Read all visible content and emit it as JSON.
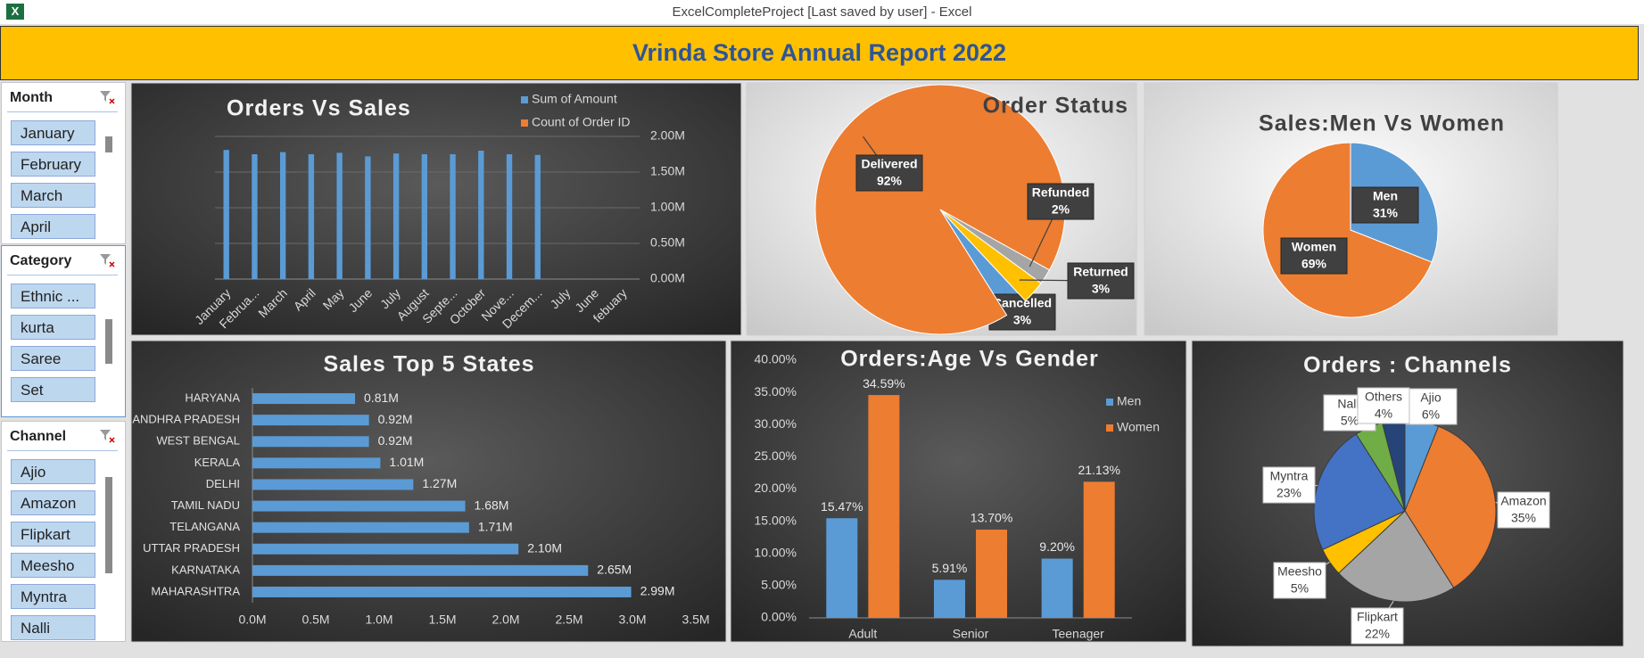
{
  "window_title": "ExcelCompleteProject [Last saved by user] - Excel",
  "header": {
    "title": "Vrinda Store Annual Report 2022"
  },
  "slicers": [
    {
      "title": "Month",
      "items": [
        "January",
        "February",
        "March",
        "April"
      ]
    },
    {
      "title": "Category",
      "items": [
        "Ethnic ...",
        "kurta",
        "Saree",
        "Set"
      ]
    },
    {
      "title": "Channel",
      "items": [
        "Ajio",
        "Amazon",
        "Flipkart",
        "Meesho",
        "Myntra",
        "Nalli"
      ]
    }
  ],
  "chart_data": [
    {
      "type": "bar",
      "title": "Orders Vs Sales",
      "categories": [
        "January",
        "Februa...",
        "March",
        "April",
        "May",
        "June",
        "July",
        "August",
        "Septe...",
        "October",
        "Nove...",
        "Decem...",
        "July",
        "June",
        "febuary"
      ],
      "series": [
        {
          "name": "Sum of Amount",
          "color": "#5B9BD5",
          "values": [
            1.81,
            1.75,
            1.78,
            1.75,
            1.77,
            1.72,
            1.76,
            1.75,
            1.75,
            1.8,
            1.75,
            1.74,
            0,
            0,
            0
          ]
        },
        {
          "name": "Count of Order ID",
          "color": "#ED7D31",
          "values": [
            0,
            0,
            0,
            0,
            0,
            0,
            0,
            0,
            0,
            0,
            0,
            0,
            0,
            0,
            0
          ]
        }
      ],
      "ylim": [
        0,
        2
      ],
      "yticks": [
        {
          "value": 0,
          "label": "0.00M"
        },
        {
          "value": 0.5,
          "label": "0.50M"
        },
        {
          "value": 1,
          "label": "1.00M"
        },
        {
          "value": 1.5,
          "label": "1.50M"
        },
        {
          "value": 2,
          "label": "2.00M"
        }
      ],
      "grid": true,
      "legend": "top-right"
    },
    {
      "type": "pie",
      "title": "Order Status",
      "categories": [
        "Cancelled",
        "Delivered",
        "Refunded",
        "Returned"
      ],
      "values": [
        3,
        92,
        2,
        3
      ],
      "value_labels": [
        "3%",
        "92%",
        "2%",
        "3%"
      ],
      "colors": [
        "#5B9BD5",
        "#ED7D31",
        "#A5A5A5",
        "#FFC000"
      ]
    },
    {
      "type": "pie",
      "title": "Sales:Men Vs Women",
      "categories": [
        "Men",
        "Women"
      ],
      "values": [
        31,
        69
      ],
      "value_labels": [
        "31%",
        "69%"
      ],
      "colors": [
        "#5B9BD5",
        "#ED7D31"
      ]
    },
    {
      "type": "barh",
      "title": "Sales Top 5 States",
      "categories": [
        "HARYANA",
        "ANDHRA PRADESH",
        "WEST BENGAL",
        "KERALA",
        "DELHI",
        "TAMIL NADU",
        "TELANGANA",
        "UTTAR PRADESH",
        "KARNATAKA",
        "MAHARASHTRA"
      ],
      "values": [
        0.81,
        0.92,
        0.92,
        1.01,
        1.27,
        1.68,
        1.71,
        2.1,
        2.65,
        2.99
      ],
      "value_labels": [
        "0.81M",
        "0.92M",
        "0.92M",
        "1.01M",
        "1.27M",
        "1.68M",
        "1.71M",
        "2.10M",
        "2.65M",
        "2.99M"
      ],
      "color": "#5B9BD5",
      "xlim": [
        0,
        3.5
      ],
      "xticks": [
        {
          "value": 0,
          "label": "0.0M"
        },
        {
          "value": 0.5,
          "label": "0.5M"
        },
        {
          "value": 1,
          "label": "1.0M"
        },
        {
          "value": 1.5,
          "label": "1.5M"
        },
        {
          "value": 2,
          "label": "2.0M"
        },
        {
          "value": 2.5,
          "label": "2.5M"
        },
        {
          "value": 3,
          "label": "3.0M"
        },
        {
          "value": 3.5,
          "label": "3.5M"
        }
      ],
      "grid": false
    },
    {
      "type": "bar",
      "title": "Orders:Age Vs Gender",
      "categories": [
        "Adult",
        "Senior",
        "Teenager"
      ],
      "series": [
        {
          "name": "Men",
          "color": "#5B9BD5",
          "values": [
            15.47,
            5.91,
            9.2
          ],
          "value_labels": [
            "15.47%",
            "5.91%",
            "9.20%"
          ]
        },
        {
          "name": "Women",
          "color": "#ED7D31",
          "values": [
            34.59,
            13.7,
            21.13
          ],
          "value_labels": [
            "34.59%",
            "13.70%",
            "21.13%"
          ]
        }
      ],
      "ylim": [
        0,
        40
      ],
      "yticks": [
        {
          "value": 0,
          "label": "0.00%"
        },
        {
          "value": 5,
          "label": "5.00%"
        },
        {
          "value": 10,
          "label": "10.00%"
        },
        {
          "value": 15,
          "label": "15.00%"
        },
        {
          "value": 20,
          "label": "20.00%"
        },
        {
          "value": 25,
          "label": "25.00%"
        },
        {
          "value": 30,
          "label": "30.00%"
        },
        {
          "value": 35,
          "label": "35.00%"
        },
        {
          "value": 40,
          "label": "40.00%"
        }
      ],
      "grid": false,
      "legend": "right"
    },
    {
      "type": "pie",
      "title": "Orders : Channels",
      "categories": [
        "Ajio",
        "Amazon",
        "Flipkart",
        "Meesho",
        "Myntra",
        "Nalli",
        "Others"
      ],
      "values": [
        6,
        35,
        22,
        5,
        23,
        5,
        4
      ],
      "value_labels": [
        "6%",
        "35%",
        "22%",
        "5%",
        "23%",
        "5%",
        "4%"
      ],
      "colors": [
        "#5B9BD5",
        "#ED7D31",
        "#A5A5A5",
        "#FFC000",
        "#4472C4",
        "#70AD47",
        "#264478"
      ]
    }
  ]
}
